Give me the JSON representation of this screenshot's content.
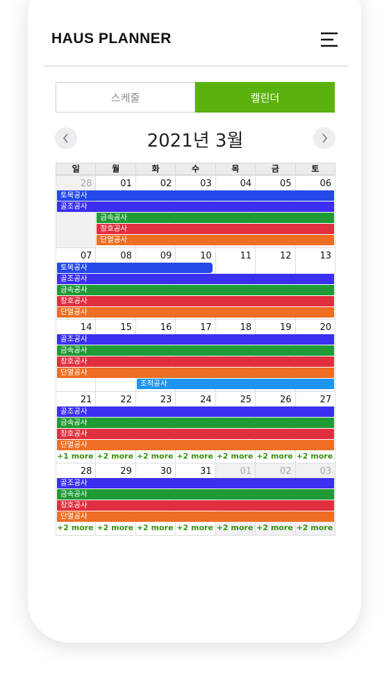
{
  "header": {
    "title": "HAUS PLANNER"
  },
  "tabs": [
    "스케줄",
    "캘린더"
  ],
  "month_title": "2021년 3월",
  "weekdays": [
    "일",
    "월",
    "화",
    "수",
    "목",
    "금",
    "토"
  ],
  "weeks": [
    {
      "days": [
        "28",
        "01",
        "02",
        "03",
        "04",
        "05",
        "06"
      ],
      "muted": [
        true,
        false,
        false,
        false,
        false,
        false,
        false
      ],
      "events": [
        {
          "name": "토목공사",
          "start": 0,
          "end": 6,
          "color": "#2349e8"
        },
        {
          "name": "골조공사",
          "start": 0,
          "end": 6,
          "color": "#3b2ff0"
        },
        {
          "name": "금속공사",
          "start": 1,
          "end": 6,
          "color": "#1f9a35"
        },
        {
          "name": "창호공사",
          "start": 1,
          "end": 6,
          "color": "#e0303f"
        },
        {
          "name": "단열공사",
          "start": 1,
          "end": 6,
          "color": "#ee6e24"
        }
      ]
    },
    {
      "days": [
        "07",
        "08",
        "09",
        "10",
        "11",
        "12",
        "13"
      ],
      "muted": [
        false,
        false,
        false,
        false,
        false,
        false,
        false
      ],
      "events": [
        {
          "name": "토목공사",
          "start": 0,
          "end": 3,
          "color": "#2349e8"
        },
        {
          "name": "골조공사",
          "start": 0,
          "end": 6,
          "color": "#3b2ff0"
        },
        {
          "name": "금속공사",
          "start": 0,
          "end": 6,
          "color": "#1f9a35"
        },
        {
          "name": "창호공사",
          "start": 0,
          "end": 6,
          "color": "#e0303f"
        },
        {
          "name": "단열공사",
          "start": 0,
          "end": 6,
          "color": "#ee6e24"
        }
      ]
    },
    {
      "days": [
        "14",
        "15",
        "16",
        "17",
        "18",
        "19",
        "20"
      ],
      "muted": [
        false,
        false,
        false,
        false,
        false,
        false,
        false
      ],
      "events": [
        {
          "name": "골조공사",
          "start": 0,
          "end": 6,
          "color": "#3b2ff0"
        },
        {
          "name": "금속공사",
          "start": 0,
          "end": 6,
          "color": "#1f9a35"
        },
        {
          "name": "창호공사",
          "start": 0,
          "end": 6,
          "color": "#e0303f"
        },
        {
          "name": "단열공사",
          "start": 0,
          "end": 6,
          "color": "#ee6e24"
        },
        {
          "name": "조적공사",
          "start": 2,
          "end": 6,
          "color": "#1e95f0"
        }
      ]
    },
    {
      "days": [
        "21",
        "22",
        "23",
        "24",
        "25",
        "26",
        "27"
      ],
      "muted": [
        false,
        false,
        false,
        false,
        false,
        false,
        false
      ],
      "events": [
        {
          "name": "골조공사",
          "start": 0,
          "end": 6,
          "color": "#3b2ff0"
        },
        {
          "name": "금속공사",
          "start": 0,
          "end": 6,
          "color": "#1f9a35"
        },
        {
          "name": "창호공사",
          "start": 0,
          "end": 6,
          "color": "#e0303f"
        },
        {
          "name": "단열공사",
          "start": 0,
          "end": 6,
          "color": "#ee6e24"
        }
      ],
      "more": [
        "+1 more",
        "+2 more",
        "+2 more",
        "+2 more",
        "+2 more",
        "+2 more",
        "+2 more"
      ]
    },
    {
      "days": [
        "28",
        "29",
        "30",
        "31",
        "01",
        "02",
        "03"
      ],
      "muted": [
        false,
        false,
        false,
        false,
        true,
        true,
        true
      ],
      "events": [
        {
          "name": "골조공사",
          "start": 0,
          "end": 6,
          "color": "#3b2ff0"
        },
        {
          "name": "금속공사",
          "start": 0,
          "end": 6,
          "color": "#1f9a35"
        },
        {
          "name": "창호공사",
          "start": 0,
          "end": 6,
          "color": "#e0303f"
        },
        {
          "name": "단열공사",
          "start": 0,
          "end": 6,
          "color": "#ee6e24"
        }
      ],
      "more": [
        "+2 more",
        "+2 more",
        "+2 more",
        "+2 more",
        "+2 more",
        "+2 more",
        "+2 more"
      ]
    }
  ]
}
